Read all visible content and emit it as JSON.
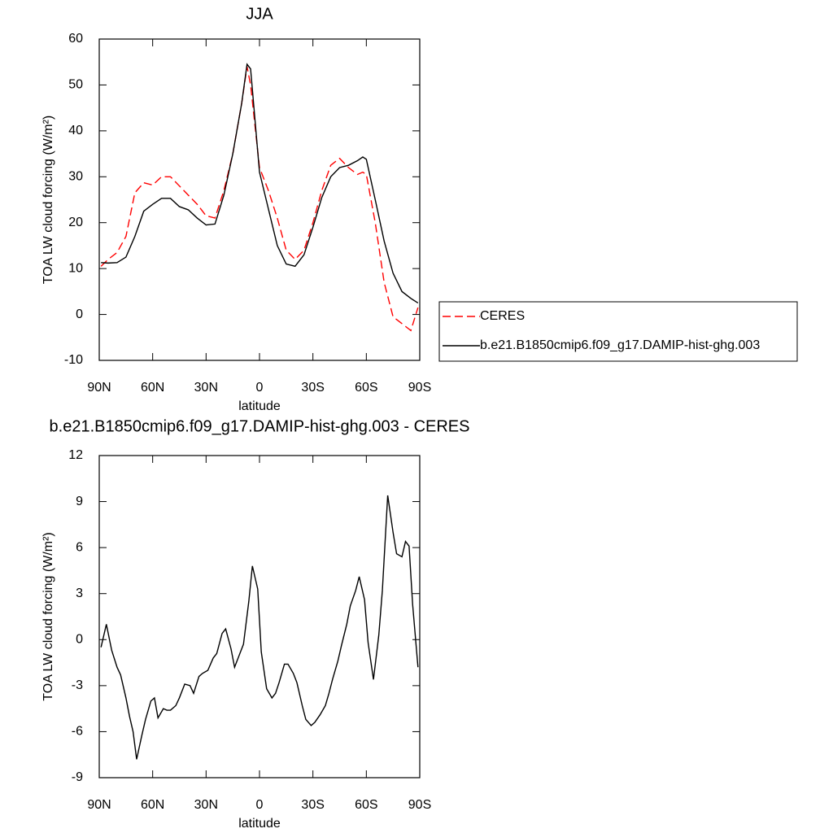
{
  "chart_data": [
    {
      "type": "line",
      "title": "JJA",
      "x_label": "latitude",
      "y_label": "TOA LW cloud forcing (W/m²)",
      "x": [
        89,
        85,
        80,
        75,
        70,
        65,
        60,
        55,
        50,
        45,
        40,
        35,
        30,
        25,
        20,
        15,
        10,
        7,
        5,
        0,
        -5,
        -10,
        -15,
        -20,
        -25,
        -30,
        -35,
        -40,
        -45,
        -50,
        -55,
        -58,
        -60,
        -65,
        -70,
        -75,
        -80,
        -85,
        -89
      ],
      "series": [
        {
          "name": "CERES",
          "color": "#ff0000",
          "dash": true,
          "values": [
            10.5,
            12,
            13.5,
            17,
            26.5,
            28.7,
            28.2,
            30,
            30,
            28,
            26,
            24,
            21.5,
            21,
            27,
            35,
            46,
            54,
            50,
            32,
            27,
            21,
            14,
            12,
            14,
            20,
            27,
            32.5,
            34,
            32,
            30.5,
            31,
            30.5,
            20,
            7,
            -0.5,
            -2,
            -3.5,
            1.5
          ]
        },
        {
          "name": "b.e21.B1850cmip6.f09_g17.DAMIP-hist-ghg.003",
          "color": "#000000",
          "dash": false,
          "values": [
            11.3,
            11.2,
            11.3,
            12.5,
            17,
            22.5,
            24,
            25.3,
            25.3,
            23.5,
            22.8,
            21,
            19.5,
            19.7,
            26,
            35,
            46,
            54.5,
            53.5,
            31,
            23,
            15,
            11,
            10.5,
            13,
            19,
            25.5,
            30,
            32,
            32.5,
            33.5,
            34.3,
            33.8,
            25,
            16,
            9,
            5,
            3.5,
            2.5
          ]
        }
      ],
      "xlim": [
        90,
        -90
      ],
      "xticks": [
        {
          "value": 90,
          "label": "90N"
        },
        {
          "value": 60,
          "label": "60N"
        },
        {
          "value": 30,
          "label": "30N"
        },
        0,
        {
          "value": -30,
          "label": "30S"
        },
        {
          "value": -60,
          "label": "60S"
        },
        {
          "value": -90,
          "label": "90S"
        }
      ],
      "ylim": [
        -10,
        60
      ],
      "yticks": [
        -10,
        0,
        10,
        20,
        30,
        40,
        50,
        60
      ],
      "legend": "outside-right"
    },
    {
      "type": "line",
      "title": "b.e21.B1850cmip6.f09_g17.DAMIP-hist-ghg.003 - CERES",
      "x_label": "latitude",
      "y_label": "TOA LW cloud forcing (W/m²)",
      "x": [
        89,
        86,
        83,
        80,
        78,
        75,
        73,
        71,
        69,
        66,
        64,
        61,
        59,
        57,
        54,
        52,
        50,
        47,
        45,
        42,
        39,
        37,
        34,
        32,
        29,
        26,
        24,
        21,
        19,
        16,
        14,
        11,
        9,
        6,
        4,
        1,
        -1,
        -4,
        -7,
        -9,
        -11,
        -14,
        -16,
        -19,
        -21,
        -24,
        -26,
        -29,
        -31,
        -34,
        -37,
        -39,
        -41,
        -44,
        -46,
        -49,
        -51,
        -54,
        -56,
        -59,
        -61,
        -64,
        -67,
        -69,
        -72,
        -75,
        -77,
        -80,
        -82,
        -84,
        -86,
        -89
      ],
      "series": [
        {
          "color": "#000000",
          "dash": false,
          "values": [
            -0.5,
            1.0,
            -0.7,
            -1.8,
            -2.3,
            -3.8,
            -5,
            -6,
            -7.8,
            -6.2,
            -5.2,
            -4,
            -3.8,
            -5.1,
            -4.5,
            -4.6,
            -4.6,
            -4.3,
            -3.8,
            -2.9,
            -3,
            -3.5,
            -2.4,
            -2.2,
            -2,
            -1.2,
            -0.9,
            0.4,
            0.7,
            -0.6,
            -1.8,
            -0.9,
            -0.3,
            2.5,
            4.8,
            3.3,
            -0.8,
            -3.2,
            -3.8,
            -3.5,
            -2.8,
            -1.6,
            -1.6,
            -2.2,
            -2.8,
            -4.3,
            -5.2,
            -5.6,
            -5.4,
            -4.9,
            -4.3,
            -3.5,
            -2.6,
            -1.4,
            -0.4,
            1,
            2.2,
            3.2,
            4.1,
            2.6,
            -0.2,
            -2.6,
            0.3,
            3.2,
            9.4,
            7,
            5.6,
            5.4,
            6.4,
            6.1,
            2.3,
            -1.8
          ]
        }
      ],
      "xlim": [
        90,
        -90
      ],
      "xticks": [
        {
          "value": 90,
          "label": "90N"
        },
        {
          "value": 60,
          "label": "60N"
        },
        {
          "value": 30,
          "label": "30N"
        },
        0,
        {
          "value": -30,
          "label": "30S"
        },
        {
          "value": -60,
          "label": "60S"
        },
        {
          "value": -90,
          "label": "90S"
        }
      ],
      "ylim": [
        -9,
        12
      ],
      "yticks": [
        -9,
        -6,
        -3,
        0,
        3,
        6,
        9,
        12
      ]
    }
  ]
}
